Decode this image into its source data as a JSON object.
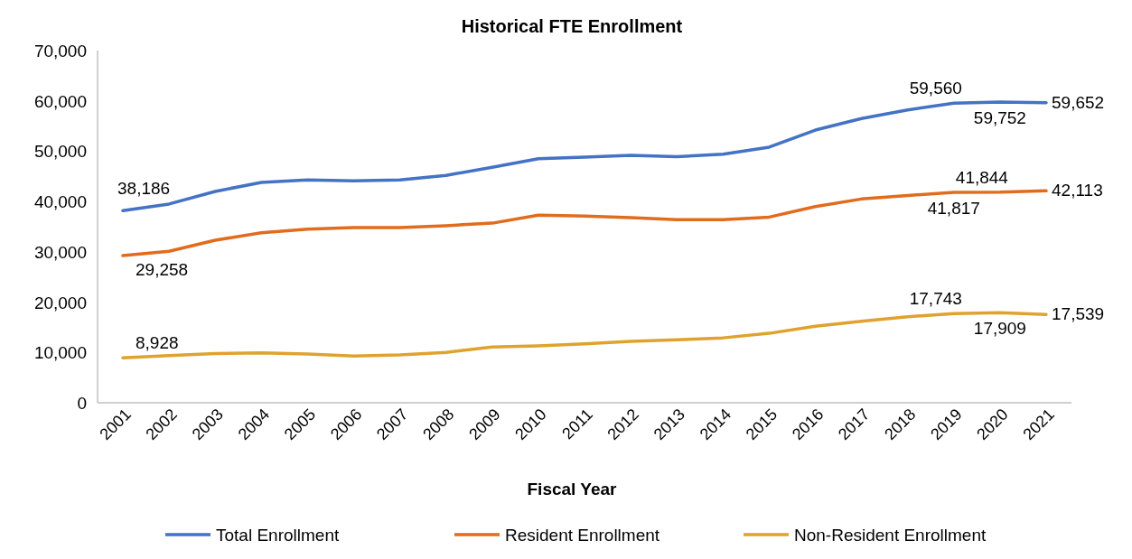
{
  "chart_data": {
    "type": "line",
    "title": "Historical FTE Enrollment",
    "xlabel": "Fiscal Year",
    "categories": [
      "2001",
      "2002",
      "2003",
      "2004",
      "2005",
      "2006",
      "2007",
      "2008",
      "2009",
      "2010",
      "2011",
      "2012",
      "2013",
      "2014",
      "2015",
      "2016",
      "2017",
      "2018",
      "2019",
      "2020",
      "2021"
    ],
    "ylim": [
      0,
      70000
    ],
    "yticks": [
      0,
      {
        "value": 10000,
        "label": "10,000"
      },
      {
        "value": 20000,
        "label": "20,000"
      },
      {
        "value": 30000,
        "label": "30,000"
      },
      {
        "value": 40000,
        "label": "40,000"
      },
      {
        "value": 50000,
        "label": "50,000"
      },
      {
        "value": 60000,
        "label": "60,000"
      },
      {
        "value": 70000,
        "label": "70,000"
      }
    ],
    "grid": false,
    "legend": "bottom",
    "marker": "none",
    "line_style": "solid",
    "series": [
      {
        "name": "Total Enrollment",
        "color": "#4472c4",
        "values": [
          38186,
          39500,
          42000,
          43800,
          44300,
          44100,
          44300,
          45200,
          46800,
          48500,
          48800,
          49200,
          48900,
          49400,
          50800,
          54200,
          56500,
          58200,
          59560,
          59752,
          59652
        ],
        "value_labels": [
          "38,186",
          null,
          null,
          null,
          null,
          null,
          null,
          null,
          null,
          null,
          null,
          null,
          null,
          null,
          null,
          null,
          null,
          null,
          "59,560",
          "59,752",
          "59,652"
        ]
      },
      {
        "name": "Resident Enrollment",
        "color": "#e06c1e",
        "values": [
          29258,
          30100,
          32300,
          33800,
          34500,
          34800,
          34800,
          35200,
          35700,
          37300,
          37100,
          36800,
          36400,
          36400,
          36900,
          39000,
          40500,
          41200,
          41817,
          41844,
          42113
        ],
        "value_labels": [
          "29,258",
          null,
          null,
          null,
          null,
          null,
          null,
          null,
          null,
          null,
          null,
          null,
          null,
          null,
          null,
          null,
          null,
          null,
          "41,817",
          "41,844",
          "42,113"
        ]
      },
      {
        "name": "Non-Resident Enrollment",
        "color": "#e0a22e",
        "values": [
          8928,
          9400,
          9800,
          9900,
          9700,
          9300,
          9500,
          10000,
          11100,
          11300,
          11700,
          12200,
          12500,
          12900,
          13800,
          15200,
          16200,
          17100,
          17743,
          17909,
          17539
        ],
        "value_labels": [
          "8,928",
          null,
          null,
          null,
          null,
          null,
          null,
          null,
          null,
          null,
          null,
          null,
          null,
          null,
          null,
          null,
          null,
          null,
          "17,743",
          "17,909",
          "17,539"
        ]
      }
    ]
  }
}
